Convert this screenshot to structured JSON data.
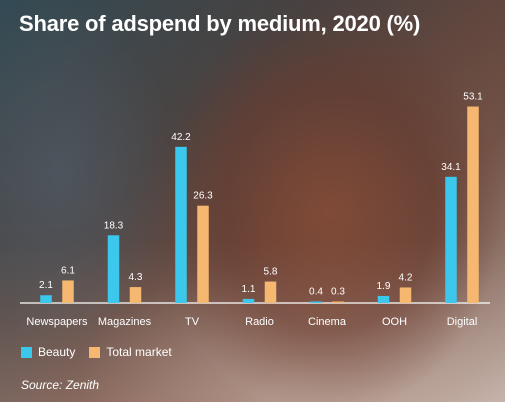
{
  "title": "Share of adspend by medium, 2020 (%)",
  "source": "Source: Zenith",
  "colors": {
    "beauty": "#3cc8ec",
    "total_market": "#f6b870",
    "text": "#ffffff",
    "axis": "#ffffff"
  },
  "chart_data": {
    "type": "bar",
    "title": "Share of adspend by medium, 2020 (%)",
    "categories": [
      "Newspapers",
      "Magazines",
      "TV",
      "Radio",
      "Cinema",
      "OOH",
      "Digital"
    ],
    "series": [
      {
        "name": "Beauty",
        "values": [
          2.1,
          18.3,
          42.2,
          1.1,
          0.4,
          1.9,
          34.1
        ]
      },
      {
        "name": "Total market",
        "values": [
          6.1,
          4.3,
          26.3,
          5.8,
          0.3,
          4.2,
          53.1
        ]
      }
    ],
    "legend": "bottom-left",
    "grid": false
  }
}
